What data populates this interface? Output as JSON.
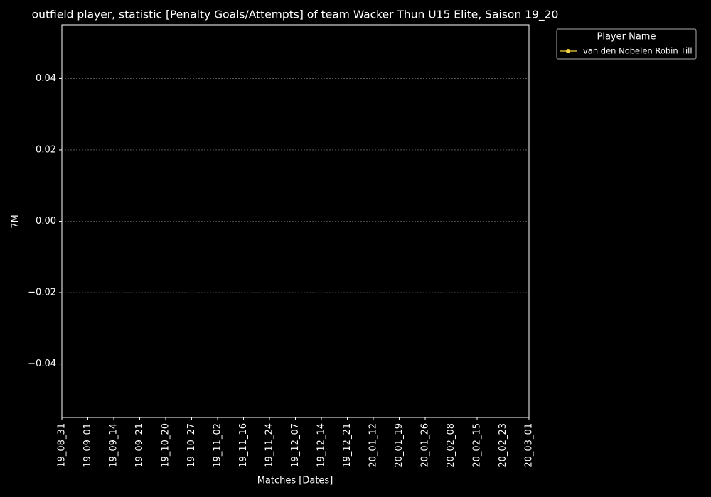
{
  "chart_data": {
    "type": "line",
    "title": "outfield player, statistic [Penalty Goals/Attempts] of team Wacker Thun U15 Elite, Saison 19_20",
    "x_label": "Matches [Dates]",
    "y_label": "7M",
    "categories": [
      "19_08_31",
      "19_09_01",
      "19_09_14",
      "19_09_21",
      "19_10_20",
      "19_10_27",
      "19_11_02",
      "19_11_16",
      "19_11_24",
      "19_12_07",
      "19_12_14",
      "19_12_21",
      "20_01_12",
      "20_01_19",
      "20_01_26",
      "20_02_08",
      "20_02_15",
      "20_02_23",
      "20_03_01"
    ],
    "series": [
      {
        "name": "van den Nobelen Robin Till",
        "color": "#f5d33a",
        "values": [
          null,
          null,
          null,
          null,
          null,
          null,
          null,
          null,
          null,
          null,
          null,
          null,
          null,
          null,
          null,
          null,
          null,
          null,
          null
        ]
      }
    ],
    "legend_title": "Player Name",
    "legend_position": "outside-top-right",
    "ylim": [
      -0.055,
      0.055
    ],
    "yticks": [
      {
        "value": -0.04,
        "label": "−0.04"
      },
      {
        "value": -0.02,
        "label": "−0.02"
      },
      {
        "value": 0,
        "label": "0.00"
      },
      {
        "value": 0.02,
        "label": "0.02"
      },
      {
        "value": 0.04,
        "label": "0.04"
      }
    ],
    "grid": true
  }
}
